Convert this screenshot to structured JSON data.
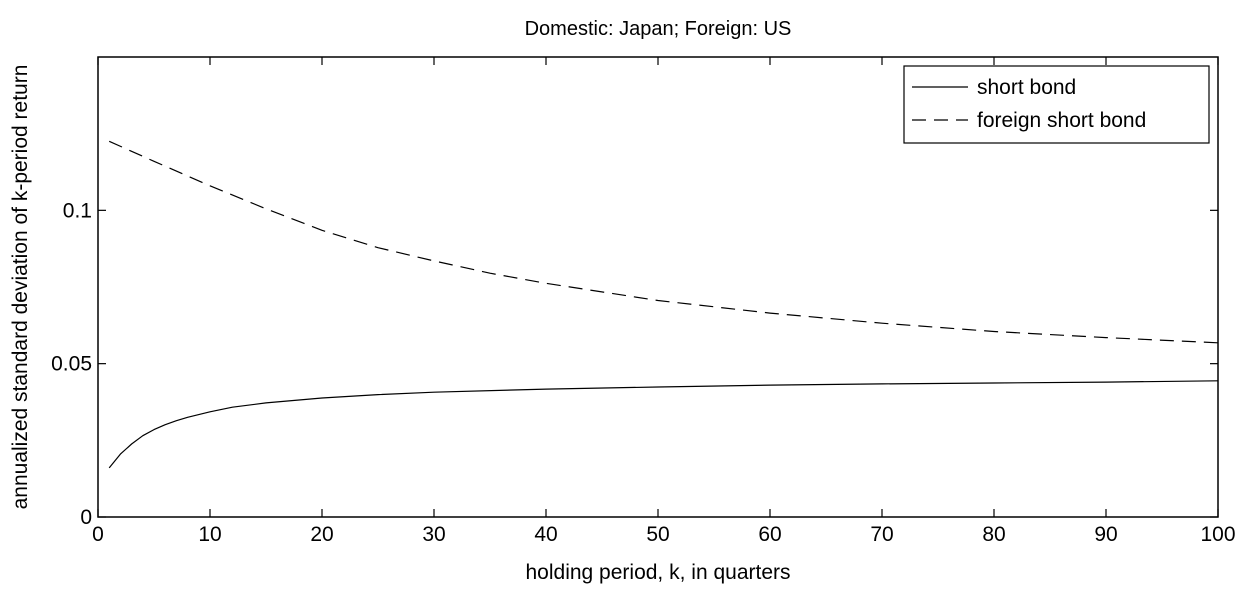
{
  "chart_data": {
    "type": "line",
    "title": "Domestic: Japan;  Foreign: US",
    "xlabel": "holding period, k, in quarters",
    "ylabel": "annualized standard deviation of k-period return",
    "xlim": [
      0,
      100
    ],
    "ylim": [
      0,
      0.15
    ],
    "xticks": [
      0,
      10,
      20,
      30,
      40,
      50,
      60,
      70,
      80,
      90,
      100
    ],
    "xtick_labels": [
      "0",
      "10",
      "20",
      "30",
      "40",
      "50",
      "60",
      "70",
      "80",
      "90",
      "100"
    ],
    "yticks": [
      0,
      0.05,
      0.1
    ],
    "ytick_labels": [
      "0",
      "0.05",
      "0.1"
    ],
    "grid": false,
    "legend_position": "top-right",
    "series": [
      {
        "name": "short bond",
        "style": "solid",
        "color": "#000000",
        "x": [
          1,
          2,
          3,
          4,
          5,
          6,
          7,
          8,
          10,
          12,
          15,
          20,
          25,
          30,
          40,
          50,
          60,
          70,
          80,
          90,
          100
        ],
        "y": [
          0.016,
          0.0205,
          0.0238,
          0.0265,
          0.0285,
          0.0301,
          0.0314,
          0.0325,
          0.0343,
          0.0358,
          0.0372,
          0.0388,
          0.0399,
          0.0407,
          0.0417,
          0.0424,
          0.043,
          0.0434,
          0.0437,
          0.044,
          0.0444
        ]
      },
      {
        "name": "foreign short bond",
        "style": "dashed",
        "color": "#000000",
        "x": [
          1,
          5,
          10,
          15,
          20,
          25,
          30,
          35,
          40,
          50,
          60,
          70,
          80,
          90,
          100
        ],
        "y": [
          0.1225,
          0.116,
          0.108,
          0.1005,
          0.0935,
          0.0878,
          0.0835,
          0.0795,
          0.0762,
          0.0706,
          0.0665,
          0.0632,
          0.0605,
          0.0585,
          0.0568
        ]
      }
    ]
  }
}
